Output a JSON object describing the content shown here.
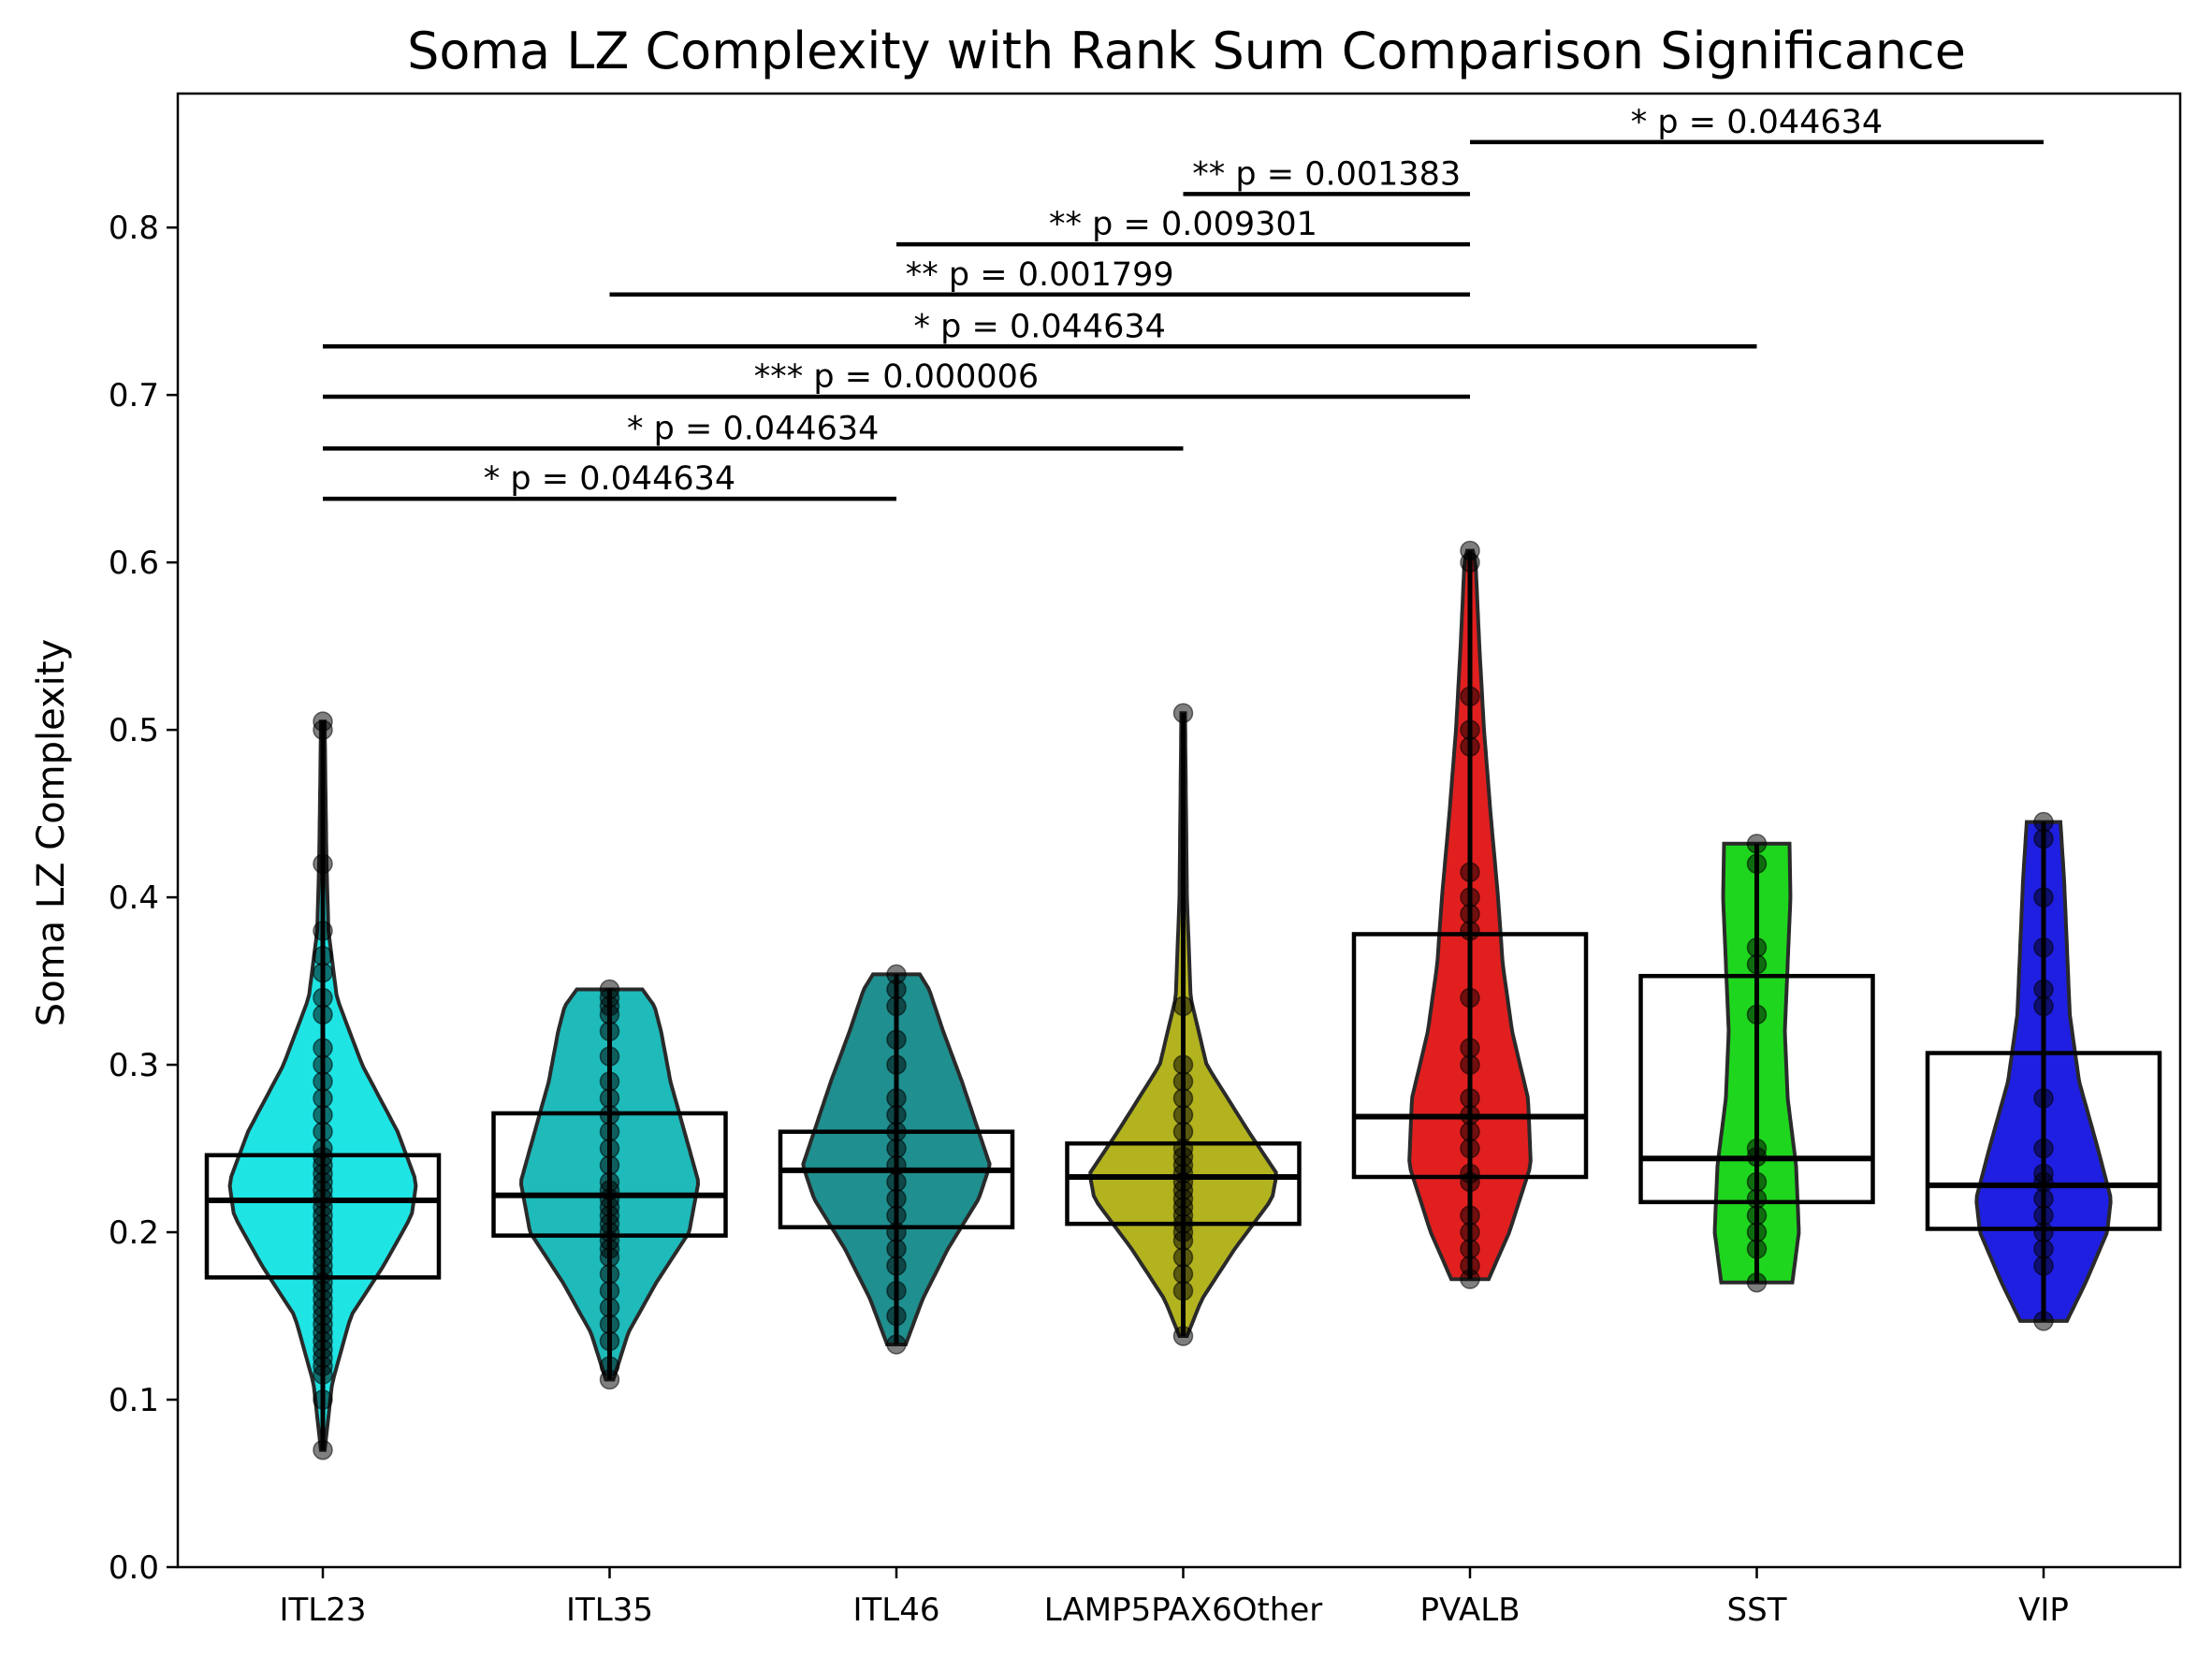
{
  "chart_data": {
    "type": "violin",
    "title": "Soma LZ Complexity with Rank Sum Comparison Significance",
    "xlabel": "",
    "ylabel": "Soma LZ Complexity",
    "ylim": [
      0.0,
      0.88
    ],
    "yticks": [
      "0.0",
      "0.1",
      "0.2",
      "0.3",
      "0.4",
      "0.5",
      "0.6",
      "0.7",
      "0.8"
    ],
    "ytick_values": [
      0.0,
      0.1,
      0.2,
      0.3,
      0.4,
      0.5,
      0.6,
      0.7,
      0.8
    ],
    "grid": false,
    "categories": [
      "ITL23",
      "ITL35",
      "ITL46",
      "LAMP5PAX6Other",
      "PVALB",
      "SST",
      "VIP"
    ],
    "groups": [
      {
        "color": "#00e0e0",
        "min": 0.07,
        "max": 0.505,
        "q1": 0.173,
        "median": 0.219,
        "q3": 0.246,
        "profile": [
          [
            0.07,
            0.02
          ],
          [
            0.11,
            0.1
          ],
          [
            0.15,
            0.3
          ],
          [
            0.18,
            0.65
          ],
          [
            0.21,
            0.95
          ],
          [
            0.23,
            1.0
          ],
          [
            0.26,
            0.8
          ],
          [
            0.3,
            0.42
          ],
          [
            0.34,
            0.15
          ],
          [
            0.38,
            0.06
          ],
          [
            0.42,
            0.04
          ],
          [
            0.46,
            0.03
          ],
          [
            0.505,
            0.02
          ]
        ],
        "points": [
          0.07,
          0.1,
          0.115,
          0.12,
          0.125,
          0.13,
          0.135,
          0.14,
          0.145,
          0.15,
          0.155,
          0.16,
          0.165,
          0.17,
          0.175,
          0.18,
          0.185,
          0.19,
          0.195,
          0.2,
          0.205,
          0.21,
          0.215,
          0.22,
          0.225,
          0.23,
          0.235,
          0.24,
          0.245,
          0.25,
          0.26,
          0.27,
          0.28,
          0.29,
          0.3,
          0.31,
          0.33,
          0.34,
          0.355,
          0.365,
          0.38,
          0.42,
          0.5,
          0.505
        ]
      },
      {
        "color": "#00b0b0",
        "min": 0.112,
        "max": 0.345,
        "q1": 0.198,
        "median": 0.222,
        "q3": 0.271,
        "profile": [
          [
            0.112,
            0.04
          ],
          [
            0.14,
            0.2
          ],
          [
            0.17,
            0.5
          ],
          [
            0.2,
            0.85
          ],
          [
            0.23,
            0.95
          ],
          [
            0.26,
            0.8
          ],
          [
            0.29,
            0.65
          ],
          [
            0.32,
            0.55
          ],
          [
            0.335,
            0.48
          ],
          [
            0.345,
            0.35
          ]
        ],
        "points": [
          0.112,
          0.12,
          0.135,
          0.145,
          0.155,
          0.165,
          0.175,
          0.185,
          0.19,
          0.195,
          0.2,
          0.205,
          0.21,
          0.215,
          0.22,
          0.225,
          0.23,
          0.24,
          0.25,
          0.26,
          0.27,
          0.28,
          0.29,
          0.305,
          0.32,
          0.33,
          0.335,
          0.34,
          0.345
        ]
      },
      {
        "color": "#008080",
        "min": 0.133,
        "max": 0.354,
        "q1": 0.203,
        "median": 0.237,
        "q3": 0.26,
        "profile": [
          [
            0.133,
            0.1
          ],
          [
            0.16,
            0.28
          ],
          [
            0.19,
            0.55
          ],
          [
            0.22,
            0.88
          ],
          [
            0.24,
            1.0
          ],
          [
            0.26,
            0.88
          ],
          [
            0.29,
            0.7
          ],
          [
            0.32,
            0.5
          ],
          [
            0.345,
            0.35
          ],
          [
            0.354,
            0.25
          ]
        ],
        "points": [
          0.133,
          0.15,
          0.165,
          0.18,
          0.19,
          0.2,
          0.21,
          0.22,
          0.23,
          0.24,
          0.25,
          0.26,
          0.27,
          0.28,
          0.3,
          0.315,
          0.335,
          0.345,
          0.354
        ]
      },
      {
        "color": "#a8a800",
        "min": 0.138,
        "max": 0.51,
        "q1": 0.205,
        "median": 0.233,
        "q3": 0.253,
        "profile": [
          [
            0.138,
            0.04
          ],
          [
            0.16,
            0.2
          ],
          [
            0.19,
            0.55
          ],
          [
            0.22,
            0.95
          ],
          [
            0.235,
            1.0
          ],
          [
            0.26,
            0.7
          ],
          [
            0.3,
            0.25
          ],
          [
            0.34,
            0.08
          ],
          [
            0.4,
            0.04
          ],
          [
            0.51,
            0.02
          ]
        ],
        "points": [
          0.138,
          0.165,
          0.175,
          0.185,
          0.195,
          0.2,
          0.205,
          0.21,
          0.215,
          0.22,
          0.225,
          0.23,
          0.235,
          0.24,
          0.245,
          0.25,
          0.26,
          0.27,
          0.28,
          0.29,
          0.3,
          0.335,
          0.51
        ]
      },
      {
        "color": "#dd0000",
        "min": 0.172,
        "max": 0.607,
        "q1": 0.233,
        "median": 0.269,
        "q3": 0.378,
        "profile": [
          [
            0.172,
            0.2
          ],
          [
            0.2,
            0.42
          ],
          [
            0.24,
            0.65
          ],
          [
            0.28,
            0.62
          ],
          [
            0.32,
            0.45
          ],
          [
            0.36,
            0.35
          ],
          [
            0.4,
            0.3
          ],
          [
            0.45,
            0.22
          ],
          [
            0.5,
            0.15
          ],
          [
            0.55,
            0.1
          ],
          [
            0.6,
            0.06
          ],
          [
            0.607,
            0.03
          ]
        ],
        "points": [
          0.172,
          0.18,
          0.19,
          0.2,
          0.21,
          0.23,
          0.235,
          0.25,
          0.26,
          0.27,
          0.28,
          0.3,
          0.31,
          0.34,
          0.38,
          0.39,
          0.4,
          0.415,
          0.49,
          0.5,
          0.52,
          0.6,
          0.607
        ]
      },
      {
        "color": "#00d000",
        "min": 0.17,
        "max": 0.432,
        "q1": 0.218,
        "median": 0.244,
        "q3": 0.353,
        "profile": [
          [
            0.17,
            0.38
          ],
          [
            0.2,
            0.45
          ],
          [
            0.24,
            0.42
          ],
          [
            0.28,
            0.33
          ],
          [
            0.32,
            0.3
          ],
          [
            0.36,
            0.33
          ],
          [
            0.4,
            0.36
          ],
          [
            0.432,
            0.35
          ]
        ],
        "points": [
          0.17,
          0.19,
          0.2,
          0.21,
          0.22,
          0.23,
          0.245,
          0.25,
          0.33,
          0.36,
          0.37,
          0.42,
          0.432
        ]
      },
      {
        "color": "#0000dd",
        "min": 0.147,
        "max": 0.445,
        "q1": 0.202,
        "median": 0.228,
        "q3": 0.307,
        "profile": [
          [
            0.147,
            0.25
          ],
          [
            0.17,
            0.45
          ],
          [
            0.2,
            0.68
          ],
          [
            0.22,
            0.72
          ],
          [
            0.25,
            0.58
          ],
          [
            0.29,
            0.38
          ],
          [
            0.33,
            0.28
          ],
          [
            0.37,
            0.25
          ],
          [
            0.41,
            0.22
          ],
          [
            0.445,
            0.18
          ]
        ],
        "points": [
          0.147,
          0.18,
          0.19,
          0.2,
          0.21,
          0.22,
          0.23,
          0.235,
          0.25,
          0.28,
          0.335,
          0.345,
          0.37,
          0.4,
          0.435,
          0.445
        ]
      }
    ],
    "comparisons": [
      {
        "from": 0,
        "to": 2,
        "y": 0.638,
        "label": "* p = 0.044634"
      },
      {
        "from": 0,
        "to": 3,
        "y": 0.668,
        "label": "* p = 0.044634"
      },
      {
        "from": 0,
        "to": 4,
        "y": 0.699,
        "label": "*** p = 0.000006"
      },
      {
        "from": 0,
        "to": 5,
        "y": 0.729,
        "label": "* p = 0.044634"
      },
      {
        "from": 1,
        "to": 4,
        "y": 0.76,
        "label": "** p = 0.001799"
      },
      {
        "from": 2,
        "to": 4,
        "y": 0.79,
        "label": "** p = 0.009301"
      },
      {
        "from": 3,
        "to": 4,
        "y": 0.82,
        "label": "** p = 0.001383"
      },
      {
        "from": 4,
        "to": 6,
        "y": 0.851,
        "label": "* p = 0.044634"
      }
    ]
  }
}
